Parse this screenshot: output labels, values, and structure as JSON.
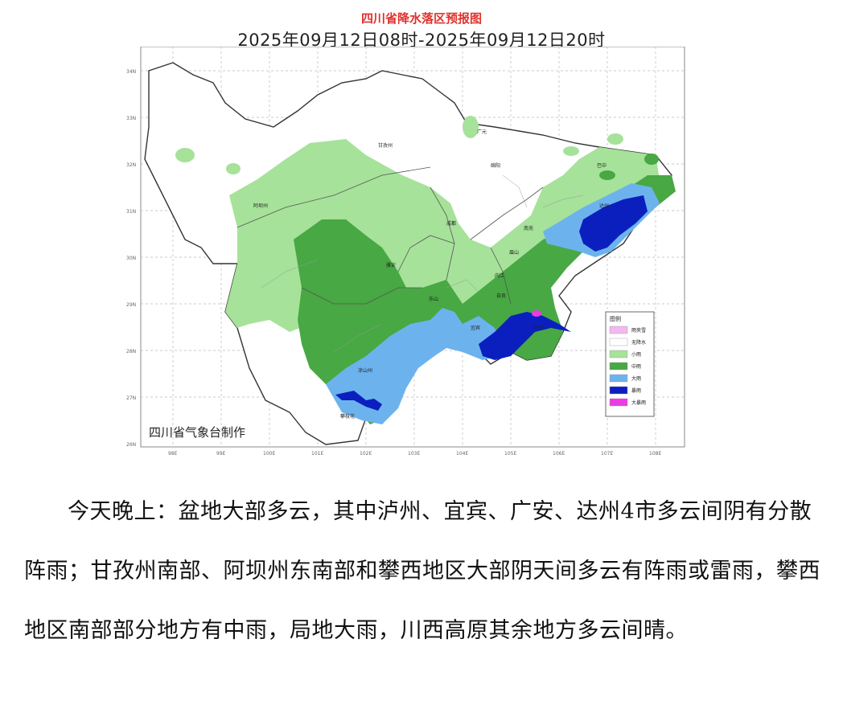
{
  "map": {
    "title": "四川省降水落区预报图",
    "subtitle": "2025年09月12日08时-2025年09月12日20时",
    "credit": "四川省气象台制作",
    "lat_labels": [
      "34N",
      "33N",
      "32N",
      "31N",
      "30N",
      "29N",
      "28N",
      "27N",
      "26N"
    ],
    "lon_labels": [
      "98E",
      "99E",
      "100E",
      "101E",
      "102E",
      "103E",
      "104E",
      "105E",
      "106E",
      "107E",
      "108E"
    ],
    "city_labels": [
      "阿坝州",
      "甘孜州",
      "绵阳",
      "巴中",
      "达州",
      "南充",
      "成都",
      "雅安",
      "乐山",
      "眉山",
      "内江",
      "宜宾",
      "泸州",
      "凉山州",
      "攀枝花",
      "广元",
      "自贡"
    ],
    "legend": {
      "title": "图例",
      "items": [
        {
          "label": "雨夹雪",
          "color": "#f3b8ef"
        },
        {
          "label": "无降水",
          "color": "#ffffff"
        },
        {
          "label": "小雨",
          "color": "#a6e29a"
        },
        {
          "label": "中雨",
          "color": "#48a843"
        },
        {
          "label": "大雨",
          "color": "#6cb3ee"
        },
        {
          "label": "暴雨",
          "color": "#0b1fbf"
        },
        {
          "label": "大暴雨",
          "color": "#ec3be4"
        }
      ]
    },
    "colors": {
      "light_rain": "#a6e29a",
      "moderate_rain": "#48a843",
      "heavy_rain": "#6cb3ee",
      "rainstorm": "#0b1fbf",
      "severe_rainstorm": "#ec3be4",
      "no_rain": "#ffffff",
      "title_red": "#e0322d"
    }
  },
  "forecast": {
    "text": "今天晚上：盆地大部多云，其中泸州、宜宾、广安、达州4市多云间阴有分散阵雨；甘孜州南部、阿坝州东南部和攀西地区大部阴天间多云有阵雨或雷雨，攀西地区南部部分地方有中雨，局地大雨，川西高原其余地方多云间晴。"
  }
}
